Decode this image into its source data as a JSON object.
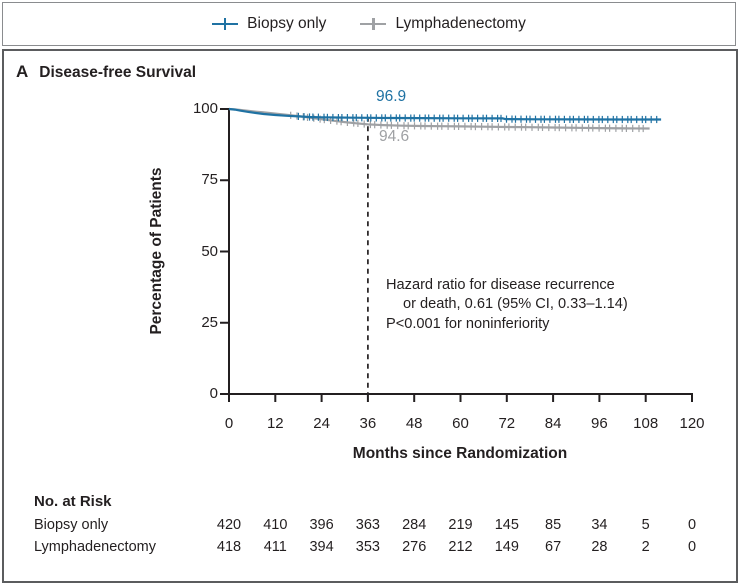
{
  "legend": {
    "items": [
      {
        "label": "Biopsy only",
        "color": "#1f72a3"
      },
      {
        "label": "Lymphadenectomy",
        "color": "#9fa1a4"
      }
    ]
  },
  "panel": {
    "letter": "A",
    "title": "Disease-free Survival"
  },
  "chart_data": {
    "type": "line",
    "subtype": "kaplan-meier-survival",
    "title": "Disease-free Survival",
    "xlabel": "Months since Randomization",
    "ylabel": "Percentage of Patients",
    "xlim": [
      0,
      120
    ],
    "ylim": [
      0,
      100
    ],
    "xticks": [
      0,
      12,
      24,
      36,
      48,
      60,
      72,
      84,
      96,
      108,
      120
    ],
    "yticks": [
      0,
      25,
      50,
      75,
      100
    ],
    "grid": false,
    "legend_position": "top",
    "reference_line": {
      "x": 36,
      "style": "dashed",
      "color": "#231f20"
    },
    "series": [
      {
        "name": "Biopsy only",
        "color": "#1f72a3",
        "value_at_36_label": "96.9",
        "points": [
          [
            0,
            100
          ],
          [
            1.5,
            99.8
          ],
          [
            3,
            99.4
          ],
          [
            5,
            99.0
          ],
          [
            7,
            98.6
          ],
          [
            9,
            98.25
          ],
          [
            12,
            97.9
          ],
          [
            15,
            97.6
          ],
          [
            18,
            97.4
          ],
          [
            21,
            97.2
          ],
          [
            24,
            97.1
          ],
          [
            28,
            97.0
          ],
          [
            32,
            96.95
          ],
          [
            36,
            96.9
          ],
          [
            42,
            96.85
          ],
          [
            50,
            96.8
          ],
          [
            60,
            96.75
          ],
          [
            71,
            96.7
          ],
          [
            71.6,
            96.45
          ],
          [
            80,
            96.4
          ],
          [
            90,
            96.35
          ],
          [
            100,
            96.3
          ],
          [
            112,
            96.3
          ]
        ],
        "censor_marks": {
          "from": 18,
          "to": 111.5,
          "spacing": 1.25
        }
      },
      {
        "name": "Lymphadenectomy",
        "color": "#9fa1a4",
        "value_at_36_label": "94.6",
        "points": [
          [
            0,
            100
          ],
          [
            1.5,
            99.9
          ],
          [
            3,
            99.65
          ],
          [
            5,
            99.35
          ],
          [
            7,
            99.05
          ],
          [
            9,
            98.8
          ],
          [
            12,
            98.4
          ],
          [
            15,
            97.95
          ],
          [
            18,
            97.5
          ],
          [
            21,
            96.95
          ],
          [
            24,
            96.4
          ],
          [
            27,
            95.9
          ],
          [
            30,
            95.4
          ],
          [
            33,
            95.0
          ],
          [
            36,
            94.6
          ],
          [
            40,
            94.35
          ],
          [
            45,
            94.15
          ],
          [
            50,
            94.05
          ],
          [
            55,
            93.95
          ],
          [
            60,
            93.9
          ],
          [
            66,
            93.8
          ],
          [
            72,
            93.7
          ],
          [
            78,
            93.6
          ],
          [
            84,
            93.5
          ],
          [
            90,
            93.4
          ],
          [
            96,
            93.3
          ],
          [
            103,
            93.2
          ],
          [
            109,
            93.15
          ]
        ],
        "censor_marks": {
          "from": 16,
          "to": 107.5,
          "spacing": 1.45
        }
      }
    ],
    "annotation_lines": [
      "Hazard ratio for disease recurrence",
      "or death, 0.61 (95% CI, 0.33–1.14)",
      "P<0.001 for noninferiority"
    ]
  },
  "risk_table": {
    "title": "No. at Risk",
    "columns_at_months": [
      0,
      12,
      24,
      36,
      48,
      60,
      72,
      84,
      96,
      108,
      120
    ],
    "rows": [
      {
        "label": "Biopsy only",
        "values": [
          "420",
          "410",
          "396",
          "363",
          "284",
          "219",
          "145",
          "85",
          "34",
          "5",
          "0"
        ]
      },
      {
        "label": "Lymphadenectomy",
        "values": [
          "418",
          "411",
          "394",
          "353",
          "276",
          "212",
          "149",
          "67",
          "28",
          "2",
          "0"
        ]
      }
    ]
  }
}
